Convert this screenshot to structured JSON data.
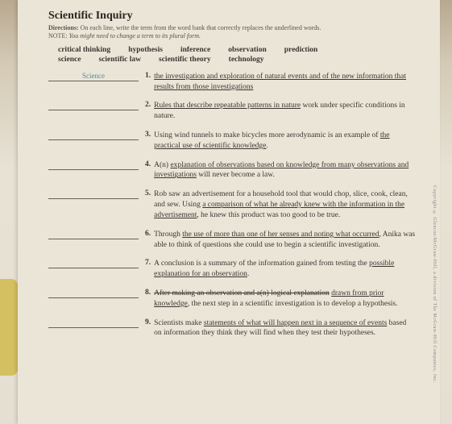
{
  "header": {
    "title": "Scientific Inquiry",
    "directions_label": "Directions:",
    "directions_text": "On each line, write the term from the word bank that correctly replaces the underlined words.",
    "note_label": "NOTE:",
    "note_text": "You might need to change a term to its plural form."
  },
  "wordbank": {
    "row1": [
      "critical thinking",
      "hypothesis",
      "inference",
      "observation",
      "prediction"
    ],
    "row2": [
      "science",
      "scientific law",
      "scientific theory",
      "technology"
    ]
  },
  "blank_fill": "Science",
  "items": [
    {
      "n": "1.",
      "pre": "",
      "u": "the investigation and exploration of natural events and of the new information that results from those investigations",
      "post": ""
    },
    {
      "n": "2.",
      "pre": "",
      "u": "Rules that describe repeatable patterns in nature",
      "post": " work under specific conditions in nature."
    },
    {
      "n": "3.",
      "pre": "Using wind tunnels to make bicycles more aerodynamic is an example of ",
      "u": "the practical use of scientific knowledge",
      "post": "."
    },
    {
      "n": "4.",
      "pre": "A(n) ",
      "u": "explanation of observations based on knowledge from many observations and investigations",
      "post": " will never become a law."
    },
    {
      "n": "5.",
      "pre": "Rob saw an advertisement for a household tool that would chop, slice, cook, clean, and sew. Using ",
      "u": "a comparison of what he already knew with the information in the advertisement",
      "post": ", he knew this product was too good to be true."
    },
    {
      "n": "6.",
      "pre": "Through ",
      "u": "the use of more than one of her senses and noting what occurred",
      "post": ", Anika was able to think of questions she could use to begin a scientific investigation."
    },
    {
      "n": "7.",
      "pre": "A conclusion is a summary of the information gained from testing the ",
      "u": "possible explanation for an observation",
      "post": "."
    },
    {
      "n": "8.",
      "pre_strike": "After making an observation and a(n) ",
      "u_strike": "logical explanation",
      "u": "drawn from prior knowledge",
      "post": ", the next step in a scientific investigation is to develop a hypothesis."
    },
    {
      "n": "9.",
      "pre": "Scientists make ",
      "u": "statements of what will happen next in a sequence of events",
      "post": " based on information they think they will find when they test their hypotheses."
    }
  ],
  "side": "Copyright © Glencoe/McGraw-Hill, a division of The McGraw-Hill Companies, Inc."
}
